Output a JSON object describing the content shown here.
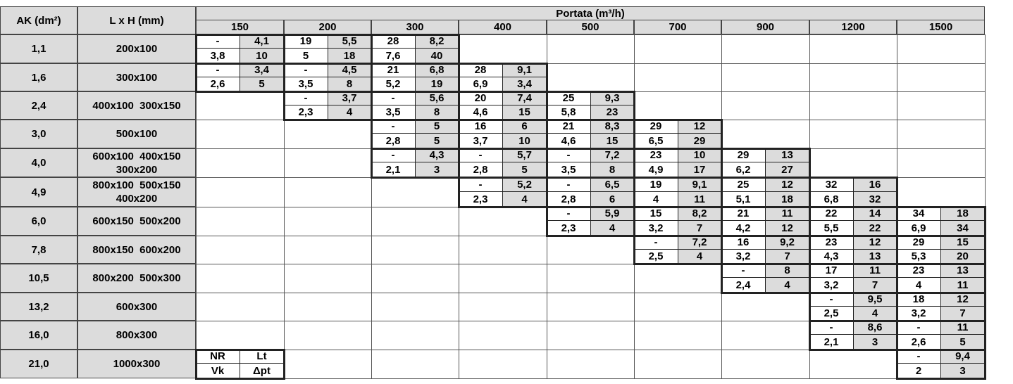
{
  "header": {
    "ak_label": "AK (dm²)",
    "lxh_label": "L x H (mm)",
    "portata_label": "Portata (m³/h)",
    "flows": [
      "150",
      "200",
      "300",
      "400",
      "500",
      "700",
      "900",
      "1200",
      "1500"
    ]
  },
  "rows": [
    {
      "ak": "1,1",
      "lxh": "200x100",
      "cells": [
        {
          "col": 0,
          "v": [
            "-",
            "4,1",
            "3,8",
            "10"
          ]
        },
        {
          "col": 1,
          "v": [
            "19",
            "5,5",
            "5",
            "18"
          ]
        },
        {
          "col": 2,
          "v": [
            "28",
            "8,2",
            "7,6",
            "40"
          ]
        }
      ]
    },
    {
      "ak": "1,6",
      "lxh": "300x100",
      "cells": [
        {
          "col": 0,
          "v": [
            "-",
            "3,4",
            "2,6",
            "5"
          ]
        },
        {
          "col": 1,
          "v": [
            "-",
            "4,5",
            "3,5",
            "8"
          ]
        },
        {
          "col": 2,
          "v": [
            "21",
            "6,8",
            "5,2",
            "19"
          ]
        },
        {
          "col": 3,
          "v": [
            "28",
            "9,1",
            "6,9",
            "3,4"
          ]
        }
      ]
    },
    {
      "ak": "2,4",
      "lxh": "400x100  300x150",
      "cells": [
        {
          "col": 1,
          "v": [
            "-",
            "3,7",
            "2,3",
            "4"
          ]
        },
        {
          "col": 2,
          "v": [
            "-",
            "5,6",
            "3,5",
            "8"
          ]
        },
        {
          "col": 3,
          "v": [
            "20",
            "7,4",
            "4,6",
            "15"
          ]
        },
        {
          "col": 4,
          "v": [
            "25",
            "9,3",
            "5,8",
            "23"
          ]
        }
      ]
    },
    {
      "ak": "3,0",
      "lxh": "500x100",
      "cells": [
        {
          "col": 2,
          "v": [
            "-",
            "5",
            "2,8",
            "5"
          ]
        },
        {
          "col": 3,
          "v": [
            "16",
            "6",
            "3,7",
            "10"
          ]
        },
        {
          "col": 4,
          "v": [
            "21",
            "8,3",
            "4,6",
            "15"
          ]
        },
        {
          "col": 5,
          "v": [
            "29",
            "12",
            "6,5",
            "29"
          ]
        }
      ]
    },
    {
      "ak": "4,0",
      "lxh": "600x100  400x150\n300x200",
      "cells": [
        {
          "col": 2,
          "v": [
            "-",
            "4,3",
            "2,1",
            "3"
          ]
        },
        {
          "col": 3,
          "v": [
            "-",
            "5,7",
            "2,8",
            "5"
          ]
        },
        {
          "col": 4,
          "v": [
            "-",
            "7,2",
            "3,5",
            "8"
          ]
        },
        {
          "col": 5,
          "v": [
            "23",
            "10",
            "4,9",
            "17"
          ]
        },
        {
          "col": 6,
          "v": [
            "29",
            "13",
            "6,2",
            "27"
          ]
        }
      ]
    },
    {
      "ak": "4,9",
      "lxh": "800x100  500x150\n400x200",
      "cells": [
        {
          "col": 3,
          "v": [
            "-",
            "5,2",
            "2,3",
            "4"
          ]
        },
        {
          "col": 4,
          "v": [
            "-",
            "6,5",
            "2,8",
            "6"
          ]
        },
        {
          "col": 5,
          "v": [
            "19",
            "9,1",
            "4",
            "11"
          ]
        },
        {
          "col": 6,
          "v": [
            "25",
            "12",
            "5,1",
            "18"
          ]
        },
        {
          "col": 7,
          "v": [
            "32",
            "16",
            "6,8",
            "32"
          ]
        }
      ]
    },
    {
      "ak": "6,0",
      "lxh": "600x150  500x200",
      "cells": [
        {
          "col": 4,
          "v": [
            "-",
            "5,9",
            "2,3",
            "4"
          ]
        },
        {
          "col": 5,
          "v": [
            "15",
            "8,2",
            "3,2",
            "7"
          ]
        },
        {
          "col": 6,
          "v": [
            "21",
            "11",
            "4,2",
            "12"
          ]
        },
        {
          "col": 7,
          "v": [
            "22",
            "14",
            "5,5",
            "22"
          ]
        },
        {
          "col": 8,
          "v": [
            "34",
            "18",
            "6,9",
            "34"
          ]
        }
      ]
    },
    {
      "ak": "7,8",
      "lxh": "800x150  600x200",
      "cells": [
        {
          "col": 5,
          "v": [
            "-",
            "7,2",
            "2,5",
            "4"
          ]
        },
        {
          "col": 6,
          "v": [
            "16",
            "9,2",
            "3,2",
            "7"
          ]
        },
        {
          "col": 7,
          "v": [
            "23",
            "12",
            "4,3",
            "13"
          ]
        },
        {
          "col": 8,
          "v": [
            "29",
            "15",
            "5,3",
            "20"
          ]
        }
      ]
    },
    {
      "ak": "10,5",
      "lxh": "800x200  500x300",
      "cells": [
        {
          "col": 6,
          "v": [
            "-",
            "8",
            "2,4",
            "4"
          ]
        },
        {
          "col": 7,
          "v": [
            "17",
            "11",
            "3,2",
            "7"
          ]
        },
        {
          "col": 8,
          "v": [
            "23",
            "13",
            "4",
            "11"
          ]
        }
      ]
    },
    {
      "ak": "13,2",
      "lxh": "600x300",
      "cells": [
        {
          "col": 7,
          "v": [
            "-",
            "9,5",
            "2,5",
            "4"
          ]
        },
        {
          "col": 8,
          "v": [
            "18",
            "12",
            "3,2",
            "7"
          ]
        }
      ]
    },
    {
      "ak": "16,0",
      "lxh": "800x300",
      "cells": [
        {
          "col": 7,
          "v": [
            "-",
            "8,6",
            "2,1",
            "3"
          ]
        },
        {
          "col": 8,
          "v": [
            "-",
            "11",
            "2,6",
            "5"
          ]
        }
      ]
    },
    {
      "ak": "21,0",
      "lxh": "1000x300",
      "cells": [
        {
          "col": 0,
          "v": [
            "NR",
            "Lt",
            "Vk",
            "Δpt"
          ],
          "legend": true
        },
        {
          "col": 8,
          "v": [
            "-",
            "9,4",
            "2",
            "3"
          ]
        }
      ]
    }
  ]
}
